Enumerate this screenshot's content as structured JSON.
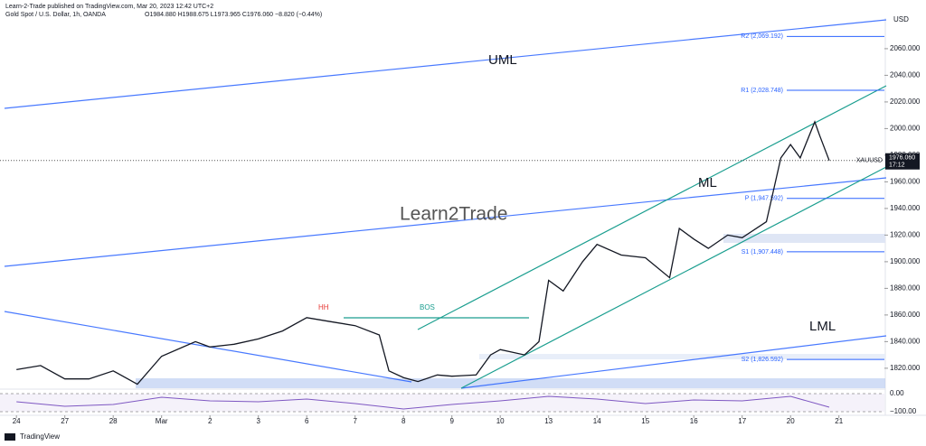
{
  "header": {
    "publisher": "Learn-2-Trade published on TradingView.com, Mar 20, 2023 12:42 UTC+2",
    "symbol": "Gold Spot / U.S. Dollar, 1h, OANDA",
    "ohlc": "O1984.880 H1988.675 L1973.965 C1976.060 −8.820 (−0.44%)"
  },
  "footer": {
    "brand": "TradingView"
  },
  "watermark": "Learn2Trade",
  "chart_data": {
    "type": "line",
    "currency": "USD",
    "symbol_tag": "XAUUSD",
    "color": "#131722",
    "x": [
      0,
      0.5,
      1,
      1.5,
      2,
      2.5,
      3,
      3.7,
      4,
      4.5,
      5,
      5.5,
      6,
      6.5,
      7,
      7.5,
      7.7,
      8,
      8.3,
      8.7,
      9,
      9.5,
      9.8,
      10,
      10.5,
      10.8,
      11,
      11.3,
      11.7,
      12,
      12.5,
      13,
      13.5,
      13.7,
      14,
      14.3,
      14.7,
      15,
      15.5,
      15.8,
      16,
      16.2,
      16.5,
      16.6,
      16.8
    ],
    "values": [
      1819,
      1822,
      1812,
      1812,
      1818,
      1808,
      1829,
      1840,
      1836,
      1838,
      1842,
      1848,
      1858,
      1855,
      1852,
      1845,
      1818,
      1813,
      1810,
      1815,
      1814,
      1815,
      1830,
      1834,
      1830,
      1840,
      1886,
      1878,
      1900,
      1913,
      1905,
      1903,
      1888,
      1925,
      1917,
      1910,
      1920,
      1918,
      1930,
      1978,
      1988,
      1978,
      2005,
      1995,
      1976
    ],
    "xlim": [
      -0.34,
      17.94
    ],
    "ylim": [
      1805,
      2083
    ],
    "xticks": [
      {
        "value": 0,
        "label": "24"
      },
      {
        "value": 1,
        "label": "27"
      },
      {
        "value": 2,
        "label": "28"
      },
      {
        "value": 3,
        "label": "Mar"
      },
      {
        "value": 4,
        "label": "2"
      },
      {
        "value": 5,
        "label": "3"
      },
      {
        "value": 6,
        "label": "6"
      },
      {
        "value": 7,
        "label": "7"
      },
      {
        "value": 8,
        "label": "8"
      },
      {
        "value": 9,
        "label": "9"
      },
      {
        "value": 10,
        "label": "10"
      },
      {
        "value": 11,
        "label": "13"
      },
      {
        "value": 12,
        "label": "14"
      },
      {
        "value": 13,
        "label": "15"
      },
      {
        "value": 14,
        "label": "16"
      },
      {
        "value": 15,
        "label": "17"
      },
      {
        "value": 16,
        "label": "20"
      },
      {
        "value": 17,
        "label": "21"
      }
    ],
    "yticks": [
      {
        "value": 1820,
        "label": "1820.000"
      },
      {
        "value": 1840,
        "label": "1840.000"
      },
      {
        "value": 1860,
        "label": "1860.000"
      },
      {
        "value": 1880,
        "label": "1880.000"
      },
      {
        "value": 1900,
        "label": "1900.000"
      },
      {
        "value": 1920,
        "label": "1920.000"
      },
      {
        "value": 1940,
        "label": "1940.000"
      },
      {
        "value": 1960,
        "label": "1960.000"
      },
      {
        "value": 1980,
        "label": "1980.000"
      },
      {
        "value": 2000,
        "label": "2000.000"
      },
      {
        "value": 2020,
        "label": "2020.000"
      },
      {
        "value": 2040,
        "label": "2040.000"
      },
      {
        "value": 2060,
        "label": "2060.000"
      }
    ],
    "last_price": {
      "value": 1976.06,
      "label": "1976.060",
      "time": "17:12"
    },
    "levels": [
      {
        "label": "R2 (2,069.192)",
        "value": 2069.192
      },
      {
        "label": "R1 (2,028.748)",
        "value": 2028.748
      },
      {
        "label": "P (1,947.592)",
        "value": 1947.592
      },
      {
        "label": "S1 (1,907.448)",
        "value": 1907.448
      },
      {
        "label": "S2 (1,826.592)",
        "value": 1826.592
      }
    ],
    "annotations": {
      "uml": "UML",
      "ml": "ML",
      "lml": "LML",
      "hh": "HH",
      "bos": "BOS"
    },
    "oscillator": {
      "x": [
        0,
        1,
        2,
        3,
        4,
        5,
        6,
        7,
        8,
        9,
        10,
        11,
        12,
        13,
        14,
        15,
        16,
        16.8
      ],
      "values": [
        -45,
        -70,
        -60,
        -20,
        -40,
        -45,
        -30,
        -55,
        -85,
        -60,
        -40,
        -15,
        -30,
        -55,
        -35,
        -40,
        -15,
        -75
      ],
      "ylim": [
        -110,
        10
      ],
      "yticks": [
        {
          "value": 0,
          "label": "0.00"
        },
        {
          "value": -100,
          "label": "−100.00"
        }
      ]
    }
  }
}
